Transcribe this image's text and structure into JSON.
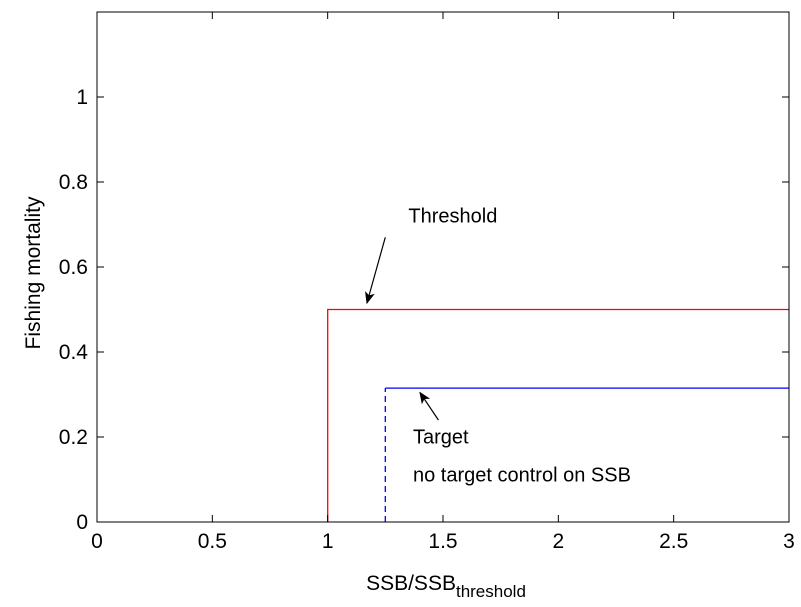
{
  "chart_data": {
    "type": "line",
    "xlabel": "SSB/SSB",
    "xlabel_sub": "threshold",
    "ylabel": "Fishing mortality",
    "xlim": [
      0,
      3
    ],
    "ylim": [
      0,
      1.2
    ],
    "xticks": [
      0,
      0.5,
      1,
      1.5,
      2,
      2.5,
      3
    ],
    "xtick_labels": [
      "0",
      "0.5",
      "1",
      "1.5",
      "2",
      "2.5",
      "3"
    ],
    "yticks": [
      0,
      0.2,
      0.4,
      0.6,
      0.8,
      1
    ],
    "ytick_labels": [
      "0",
      "0.2",
      "0.4",
      "0.6",
      "0.8",
      "1"
    ],
    "grid": false,
    "series": [
      {
        "name": "Threshold",
        "color": "#ff0000",
        "style": "solid",
        "x": [
          1,
          1,
          3
        ],
        "y": [
          0,
          0.5,
          0.5
        ]
      },
      {
        "name": "Target",
        "color": "#0000ff",
        "style": "solid",
        "x": [
          1.25,
          3
        ],
        "y": [
          0.315,
          0.315
        ]
      },
      {
        "name": "no target control on SSB",
        "color": "#0000ff",
        "style": "dashed",
        "x": [
          1.25,
          1.25
        ],
        "y": [
          0,
          0.315
        ]
      }
    ],
    "annotations": [
      {
        "text": "Threshold",
        "text_x": 1.35,
        "text_y": 0.705,
        "arrow_from": [
          1.25,
          0.67
        ],
        "arrow_to": [
          1.17,
          0.515
        ]
      },
      {
        "text": "Target",
        "text_x": 1.37,
        "text_y": 0.185,
        "arrow_from": [
          1.48,
          0.24
        ],
        "arrow_to": [
          1.4,
          0.305
        ]
      },
      {
        "text": "no target control on SSB",
        "text_x": 1.37,
        "text_y": 0.095,
        "arrow_from": null,
        "arrow_to": null
      }
    ]
  }
}
